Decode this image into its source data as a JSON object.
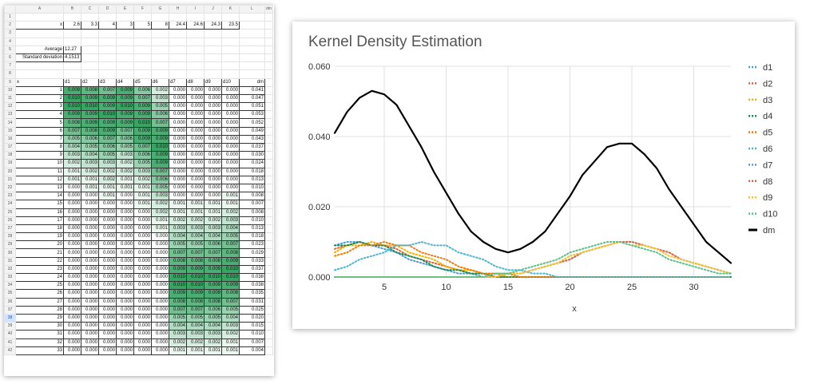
{
  "sheet": {
    "col_letters": [
      "A",
      "B",
      "C",
      "D",
      "E",
      "F",
      "G",
      "H",
      "I",
      "J",
      "K",
      "L",
      "dm"
    ],
    "x_row": {
      "label": "x",
      "values": [
        "2.6",
        "3.3",
        "4",
        "3",
        "5",
        "8",
        "24.4",
        "24.6",
        "24.3",
        "23.5"
      ]
    },
    "average": {
      "label": "Average",
      "value": "12.27"
    },
    "std": {
      "label": "Standard deviation",
      "value": "4.1513"
    },
    "table_header": {
      "x": "x",
      "cols": [
        "d1",
        "d2",
        "d3",
        "d4",
        "d5",
        "d6",
        "d7",
        "d8",
        "d9",
        "d10",
        "dm"
      ]
    },
    "rows": [
      [
        "1",
        "0.009",
        "0.008",
        "0.007",
        "0.009",
        "0.006",
        "0.002",
        "0.000",
        "0.000",
        "0.000",
        "0.000",
        "0.041"
      ],
      [
        "2",
        "0.010",
        "0.009",
        "0.009",
        "0.009",
        "0.007",
        "0.003",
        "0.000",
        "0.000",
        "0.000",
        "0.000",
        "0.047"
      ],
      [
        "3",
        "0.010",
        "0.010",
        "0.009",
        "0.010",
        "0.009",
        "0.005",
        "0.000",
        "0.000",
        "0.000",
        "0.000",
        "0.051"
      ],
      [
        "4",
        "0.009",
        "0.009",
        "0.010",
        "0.009",
        "0.009",
        "0.006",
        "0.000",
        "0.000",
        "0.000",
        "0.000",
        "0.053"
      ],
      [
        "5",
        "0.008",
        "0.009",
        "0.009",
        "0.009",
        "0.010",
        "0.007",
        "0.000",
        "0.000",
        "0.000",
        "0.000",
        "0.052"
      ],
      [
        "6",
        "0.007",
        "0.008",
        "0.009",
        "0.007",
        "0.009",
        "0.009",
        "0.000",
        "0.000",
        "0.000",
        "0.000",
        "0.049"
      ],
      [
        "7",
        "0.005",
        "0.006",
        "0.007",
        "0.006",
        "0.009",
        "0.009",
        "0.000",
        "0.000",
        "0.000",
        "0.000",
        "0.043"
      ],
      [
        "8",
        "0.004",
        "0.005",
        "0.006",
        "0.005",
        "0.007",
        "0.010",
        "0.000",
        "0.000",
        "0.000",
        "0.000",
        "0.037"
      ],
      [
        "9",
        "0.003",
        "0.004",
        "0.005",
        "0.003",
        "0.006",
        "0.009",
        "0.000",
        "0.000",
        "0.000",
        "0.000",
        "0.030"
      ],
      [
        "10",
        "0.002",
        "0.003",
        "0.003",
        "0.002",
        "0.005",
        "0.009",
        "0.000",
        "0.000",
        "0.000",
        "0.000",
        "0.024"
      ],
      [
        "11",
        "0.001",
        "0.002",
        "0.002",
        "0.002",
        "0.003",
        "0.007",
        "0.000",
        "0.000",
        "0.000",
        "0.000",
        "0.018"
      ],
      [
        "12",
        "0.001",
        "0.001",
        "0.002",
        "0.001",
        "0.002",
        "0.006",
        "0.000",
        "0.000",
        "0.000",
        "0.000",
        "0.013"
      ],
      [
        "13",
        "0.000",
        "0.001",
        "0.001",
        "0.001",
        "0.001",
        "0.005",
        "0.000",
        "0.000",
        "0.000",
        "0.000",
        "0.010"
      ],
      [
        "14",
        "0.000",
        "0.000",
        "0.001",
        "0.000",
        "0.001",
        "0.003",
        "0.000",
        "0.000",
        "0.000",
        "0.001",
        "0.008"
      ],
      [
        "15",
        "0.000",
        "0.000",
        "0.000",
        "0.000",
        "0.001",
        "0.002",
        "0.001",
        "0.001",
        "0.001",
        "0.001",
        "0.007"
      ],
      [
        "16",
        "0.000",
        "0.000",
        "0.000",
        "0.000",
        "0.000",
        "0.002",
        "0.001",
        "0.001",
        "0.001",
        "0.002",
        "0.008"
      ],
      [
        "17",
        "0.000",
        "0.000",
        "0.000",
        "0.000",
        "0.000",
        "0.001",
        "0.002",
        "0.002",
        "0.002",
        "0.003",
        "0.010"
      ],
      [
        "18",
        "0.000",
        "0.000",
        "0.000",
        "0.000",
        "0.000",
        "0.001",
        "0.003",
        "0.003",
        "0.003",
        "0.004",
        "0.013"
      ],
      [
        "19",
        "0.000",
        "0.000",
        "0.000",
        "0.000",
        "0.000",
        "0.000",
        "0.004",
        "0.004",
        "0.004",
        "0.005",
        "0.018"
      ],
      [
        "20",
        "0.000",
        "0.000",
        "0.000",
        "0.000",
        "0.000",
        "0.000",
        "0.005",
        "0.005",
        "0.006",
        "0.007",
        "0.023"
      ],
      [
        "21",
        "0.000",
        "0.000",
        "0.000",
        "0.000",
        "0.000",
        "0.000",
        "0.007",
        "0.007",
        "0.007",
        "0.008",
        "0.029"
      ],
      [
        "22",
        "0.000",
        "0.000",
        "0.000",
        "0.000",
        "0.000",
        "0.000",
        "0.008",
        "0.008",
        "0.008",
        "0.009",
        "0.033"
      ],
      [
        "23",
        "0.000",
        "0.000",
        "0.000",
        "0.000",
        "0.000",
        "0.000",
        "0.009",
        "0.009",
        "0.009",
        "0.010",
        "0.037"
      ],
      [
        "24",
        "0.000",
        "0.000",
        "0.000",
        "0.000",
        "0.000",
        "0.000",
        "0.010",
        "0.010",
        "0.010",
        "0.010",
        "0.038"
      ],
      [
        "25",
        "0.000",
        "0.000",
        "0.000",
        "0.000",
        "0.000",
        "0.000",
        "0.010",
        "0.010",
        "0.009",
        "0.009",
        "0.038"
      ],
      [
        "26",
        "0.000",
        "0.000",
        "0.000",
        "0.000",
        "0.000",
        "0.000",
        "0.009",
        "0.009",
        "0.009",
        "0.008",
        "0.035"
      ],
      [
        "27",
        "0.000",
        "0.000",
        "0.000",
        "0.000",
        "0.000",
        "0.000",
        "0.008",
        "0.008",
        "0.008",
        "0.007",
        "0.031"
      ],
      [
        "28",
        "0.000",
        "0.000",
        "0.000",
        "0.000",
        "0.000",
        "0.000",
        "0.007",
        "0.007",
        "0.006",
        "0.005",
        "0.025"
      ],
      [
        "29",
        "0.000",
        "0.000",
        "0.000",
        "0.000",
        "0.000",
        "0.000",
        "0.005",
        "0.005",
        "0.005",
        "0.004",
        "0.020"
      ],
      [
        "30",
        "0.000",
        "0.000",
        "0.000",
        "0.000",
        "0.000",
        "0.000",
        "0.004",
        "0.004",
        "0.004",
        "0.003",
        "0.015"
      ],
      [
        "31",
        "0.000",
        "0.000",
        "0.000",
        "0.000",
        "0.000",
        "0.000",
        "0.003",
        "0.003",
        "0.003",
        "0.002",
        "0.010"
      ],
      [
        "32",
        "0.000",
        "0.000",
        "0.000",
        "0.000",
        "0.000",
        "0.000",
        "0.002",
        "0.002",
        "0.002",
        "0.001",
        "0.007"
      ],
      [
        "33",
        "0.000",
        "0.000",
        "0.000",
        "0.000",
        "0.000",
        "0.000",
        "0.001",
        "0.001",
        "0.001",
        "0.001",
        "0.004"
      ]
    ],
    "selected_row": "38",
    "shade_color": "#2e9e5b"
  },
  "chart_data": {
    "type": "line",
    "title": "Kernel Density Estimation",
    "xlabel": "x",
    "ylabel": "",
    "xlim": [
      1,
      33
    ],
    "ylim": [
      0,
      0.06
    ],
    "x_ticks": [
      5,
      10,
      15,
      20,
      25,
      30
    ],
    "y_ticks": [
      "0.000",
      "0.020",
      "0.040",
      "0.060"
    ],
    "grid": true,
    "legend_position": "right",
    "x": [
      1,
      2,
      3,
      4,
      5,
      6,
      7,
      8,
      9,
      10,
      11,
      12,
      13,
      14,
      15,
      16,
      17,
      18,
      19,
      20,
      21,
      22,
      23,
      24,
      25,
      26,
      27,
      28,
      29,
      30,
      31,
      32,
      33
    ],
    "series": [
      {
        "name": "d1",
        "color": "#4e9ed6",
        "style": "dotted",
        "values": [
          0.009,
          0.01,
          0.01,
          0.009,
          0.008,
          0.007,
          0.005,
          0.004,
          0.003,
          0.002,
          0.001,
          0.001,
          0.0,
          0.0,
          0.0,
          0.0,
          0.0,
          0.0,
          0.0,
          0.0,
          0.0,
          0.0,
          0.0,
          0.0,
          0.0,
          0.0,
          0.0,
          0.0,
          0.0,
          0.0,
          0.0,
          0.0,
          0.0
        ]
      },
      {
        "name": "d2",
        "color": "#e0643a",
        "style": "dotted",
        "values": [
          0.008,
          0.009,
          0.01,
          0.009,
          0.009,
          0.008,
          0.006,
          0.005,
          0.004,
          0.003,
          0.002,
          0.001,
          0.001,
          0.0,
          0.0,
          0.0,
          0.0,
          0.0,
          0.0,
          0.0,
          0.0,
          0.0,
          0.0,
          0.0,
          0.0,
          0.0,
          0.0,
          0.0,
          0.0,
          0.0,
          0.0,
          0.0,
          0.0
        ]
      },
      {
        "name": "d3",
        "color": "#f0b400",
        "style": "dotted",
        "values": [
          0.007,
          0.009,
          0.009,
          0.01,
          0.009,
          0.009,
          0.007,
          0.006,
          0.005,
          0.003,
          0.002,
          0.002,
          0.001,
          0.001,
          0.0,
          0.0,
          0.0,
          0.0,
          0.0,
          0.0,
          0.0,
          0.0,
          0.0,
          0.0,
          0.0,
          0.0,
          0.0,
          0.0,
          0.0,
          0.0,
          0.0,
          0.0,
          0.0
        ]
      },
      {
        "name": "d4",
        "color": "#1f8a53",
        "style": "dotted",
        "values": [
          0.009,
          0.009,
          0.01,
          0.009,
          0.009,
          0.007,
          0.006,
          0.005,
          0.003,
          0.002,
          0.002,
          0.001,
          0.001,
          0.0,
          0.0,
          0.0,
          0.0,
          0.0,
          0.0,
          0.0,
          0.0,
          0.0,
          0.0,
          0.0,
          0.0,
          0.0,
          0.0,
          0.0,
          0.0,
          0.0,
          0.0,
          0.0,
          0.0
        ]
      },
      {
        "name": "d5",
        "color": "#f27b13",
        "style": "dotted",
        "values": [
          0.006,
          0.007,
          0.009,
          0.009,
          0.01,
          0.009,
          0.009,
          0.007,
          0.006,
          0.005,
          0.003,
          0.002,
          0.001,
          0.001,
          0.001,
          0.0,
          0.0,
          0.0,
          0.0,
          0.0,
          0.0,
          0.0,
          0.0,
          0.0,
          0.0,
          0.0,
          0.0,
          0.0,
          0.0,
          0.0,
          0.0,
          0.0,
          0.0
        ]
      },
      {
        "name": "d6",
        "color": "#4db6d0",
        "style": "dotted",
        "values": [
          0.002,
          0.003,
          0.005,
          0.006,
          0.007,
          0.009,
          0.009,
          0.01,
          0.009,
          0.009,
          0.007,
          0.006,
          0.005,
          0.003,
          0.002,
          0.002,
          0.001,
          0.001,
          0.0,
          0.0,
          0.0,
          0.0,
          0.0,
          0.0,
          0.0,
          0.0,
          0.0,
          0.0,
          0.0,
          0.0,
          0.0,
          0.0,
          0.0
        ]
      },
      {
        "name": "d7",
        "color": "#5b9bd5",
        "style": "dotted",
        "values": [
          0.0,
          0.0,
          0.0,
          0.0,
          0.0,
          0.0,
          0.0,
          0.0,
          0.0,
          0.0,
          0.0,
          0.0,
          0.0,
          0.0,
          0.001,
          0.001,
          0.002,
          0.003,
          0.004,
          0.005,
          0.007,
          0.008,
          0.009,
          0.01,
          0.01,
          0.009,
          0.008,
          0.007,
          0.005,
          0.004,
          0.003,
          0.002,
          0.001
        ]
      },
      {
        "name": "d8",
        "color": "#e0643a",
        "style": "dotted",
        "values": [
          0.0,
          0.0,
          0.0,
          0.0,
          0.0,
          0.0,
          0.0,
          0.0,
          0.0,
          0.0,
          0.0,
          0.0,
          0.0,
          0.0,
          0.001,
          0.001,
          0.002,
          0.003,
          0.004,
          0.005,
          0.007,
          0.008,
          0.009,
          0.01,
          0.01,
          0.009,
          0.008,
          0.007,
          0.005,
          0.004,
          0.003,
          0.002,
          0.001
        ]
      },
      {
        "name": "d9",
        "color": "#f4c430",
        "style": "dotted",
        "values": [
          0.0,
          0.0,
          0.0,
          0.0,
          0.0,
          0.0,
          0.0,
          0.0,
          0.0,
          0.0,
          0.0,
          0.0,
          0.0,
          0.0,
          0.001,
          0.001,
          0.002,
          0.003,
          0.004,
          0.006,
          0.007,
          0.008,
          0.009,
          0.01,
          0.009,
          0.009,
          0.008,
          0.006,
          0.005,
          0.004,
          0.003,
          0.002,
          0.001
        ]
      },
      {
        "name": "d10",
        "color": "#5cc08a",
        "style": "dotted",
        "values": [
          0.0,
          0.0,
          0.0,
          0.0,
          0.0,
          0.0,
          0.0,
          0.0,
          0.0,
          0.0,
          0.0,
          0.0,
          0.0,
          0.001,
          0.001,
          0.002,
          0.003,
          0.004,
          0.005,
          0.007,
          0.008,
          0.009,
          0.01,
          0.01,
          0.009,
          0.008,
          0.007,
          0.005,
          0.004,
          0.003,
          0.002,
          0.001,
          0.001
        ]
      },
      {
        "name": "dm",
        "color": "#000000",
        "style": "solid",
        "values": [
          0.041,
          0.047,
          0.051,
          0.053,
          0.052,
          0.049,
          0.043,
          0.037,
          0.03,
          0.024,
          0.018,
          0.013,
          0.01,
          0.008,
          0.007,
          0.008,
          0.01,
          0.013,
          0.018,
          0.023,
          0.029,
          0.033,
          0.037,
          0.038,
          0.038,
          0.035,
          0.031,
          0.025,
          0.02,
          0.015,
          0.01,
          0.007,
          0.004
        ]
      }
    ]
  }
}
